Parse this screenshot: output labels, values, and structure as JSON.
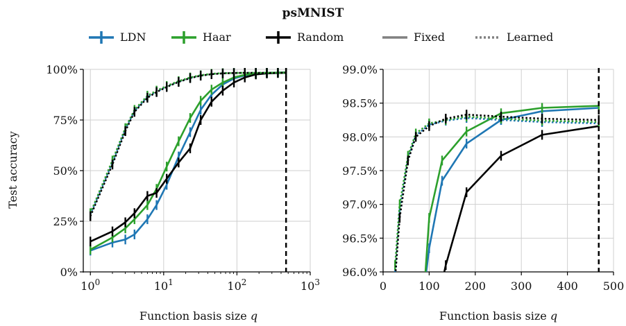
{
  "title": "psMNIST",
  "legend": [
    {
      "label": "LDN",
      "kind": "errorbar",
      "color": "#1f77b4"
    },
    {
      "label": "Haar",
      "kind": "errorbar",
      "color": "#2ca02c"
    },
    {
      "label": "Random",
      "kind": "errorbar",
      "color": "#000000"
    },
    {
      "label": "Fixed",
      "kind": "solid",
      "color": "#808080"
    },
    {
      "label": "Learned",
      "kind": "dotted",
      "color": "#808080"
    }
  ],
  "chart_data": [
    {
      "type": "line",
      "xscale": "log",
      "xlabel": "Function basis size q",
      "ylabel": "Test accuracy",
      "xlim": [
        0.8,
        1000
      ],
      "ylim": [
        0,
        100
      ],
      "xticks": [
        1,
        10,
        100,
        1000
      ],
      "xtick_labels": [
        "10^0",
        "10^1",
        "10^2",
        "10^3"
      ],
      "yticks": [
        0,
        25,
        50,
        75,
        100
      ],
      "ytick_labels": [
        "0%",
        "25%",
        "50%",
        "75%",
        "100%"
      ],
      "grid": true,
      "vline": 468,
      "series": [
        {
          "name": "LDN",
          "style": "Fixed",
          "color": "#1f77b4",
          "x": [
            1,
            2,
            3,
            4,
            6,
            8,
            11,
            16,
            23,
            32,
            45,
            64,
            91,
            128,
            181,
            256,
            362,
            468
          ],
          "y": [
            10.5,
            14.5,
            16.0,
            18.5,
            26.0,
            33.0,
            43.0,
            57.0,
            69.0,
            80.0,
            87.5,
            92.5,
            95.5,
            97.0,
            97.8,
            98.2,
            98.4,
            98.5
          ]
        },
        {
          "name": "Haar",
          "style": "Fixed",
          "color": "#2ca02c",
          "x": [
            1,
            2,
            3,
            4,
            6,
            8,
            11,
            16,
            23,
            32,
            45,
            64,
            91,
            128,
            181,
            256,
            362,
            468
          ],
          "y": [
            11.0,
            17.0,
            21.5,
            26.0,
            33.0,
            41.0,
            52.0,
            64.5,
            76.0,
            84.5,
            90.0,
            93.5,
            96.0,
            97.3,
            98.0,
            98.3,
            98.4,
            98.5
          ]
        },
        {
          "name": "Random",
          "style": "Fixed",
          "color": "#000000",
          "x": [
            1,
            2,
            3,
            4,
            6,
            8,
            11,
            16,
            23,
            32,
            45,
            64,
            91,
            128,
            181,
            256,
            362,
            468
          ],
          "y": [
            15.0,
            20.0,
            24.5,
            29.0,
            37.5,
            39.0,
            46.0,
            54.0,
            61.0,
            75.0,
            84.0,
            89.5,
            93.5,
            96.0,
            97.5,
            98.0,
            98.2,
            98.3
          ]
        },
        {
          "name": "LDN",
          "style": "Learned",
          "color": "#1f77b4",
          "x": [
            1,
            2,
            3,
            4,
            6,
            8,
            11,
            16,
            23,
            32,
            45,
            64,
            91,
            128,
            181,
            256,
            362,
            468
          ],
          "y": [
            28.5,
            54.0,
            70.5,
            79.5,
            86.5,
            89.0,
            91.5,
            94.0,
            95.8,
            97.0,
            97.7,
            98.1,
            98.2,
            98.3,
            98.3,
            98.3,
            98.3,
            98.3
          ]
        },
        {
          "name": "Haar",
          "style": "Learned",
          "color": "#2ca02c",
          "x": [
            1,
            2,
            3,
            4,
            6,
            8,
            11,
            16,
            23,
            32,
            45,
            64,
            91,
            128,
            181,
            256,
            362,
            468
          ],
          "y": [
            29.0,
            55.0,
            71.0,
            80.0,
            87.0,
            89.5,
            91.8,
            94.2,
            96.0,
            97.1,
            97.8,
            98.1,
            98.2,
            98.3,
            98.3,
            98.3,
            98.3,
            98.3
          ]
        },
        {
          "name": "Random",
          "style": "Learned",
          "color": "#000000",
          "x": [
            1,
            2,
            3,
            4,
            6,
            8,
            11,
            16,
            23,
            32,
            45,
            64,
            91,
            128,
            181,
            256,
            362,
            468
          ],
          "y": [
            27.5,
            53.0,
            69.5,
            79.0,
            86.0,
            88.8,
            91.3,
            93.8,
            95.7,
            96.9,
            97.6,
            98.0,
            98.2,
            98.3,
            98.3,
            98.3,
            98.3,
            98.3
          ]
        }
      ]
    },
    {
      "type": "line",
      "xscale": "linear",
      "xlabel": "Function basis size q",
      "ylabel": "",
      "xlim": [
        0,
        500
      ],
      "ylim": [
        96.0,
        99.0
      ],
      "xticks": [
        0,
        100,
        200,
        300,
        400,
        500
      ],
      "xtick_labels": [
        "0",
        "100",
        "200",
        "300",
        "400",
        "500"
      ],
      "yticks": [
        96.0,
        96.5,
        97.0,
        97.5,
        98.0,
        98.5,
        99.0
      ],
      "ytick_labels": [
        "96.0%",
        "96.5%",
        "97.0%",
        "97.5%",
        "98.0%",
        "98.5%",
        "99.0%"
      ],
      "grid": true,
      "vline": 468,
      "series": [
        {
          "name": "LDN",
          "style": "Fixed",
          "color": "#1f77b4",
          "x": [
            91,
            100,
            128,
            181,
            256,
            345,
            468
          ],
          "y": [
            95.85,
            96.35,
            97.35,
            97.9,
            98.25,
            98.38,
            98.43
          ]
        },
        {
          "name": "Haar",
          "style": "Fixed",
          "color": "#2ca02c",
          "x": [
            91,
            100,
            128,
            181,
            256,
            345,
            468
          ],
          "y": [
            95.9,
            96.8,
            97.65,
            98.08,
            98.35,
            98.43,
            98.46
          ]
        },
        {
          "name": "Random",
          "style": "Fixed",
          "color": "#000000",
          "x": [
            128,
            136,
            181,
            256,
            345,
            468
          ],
          "y": [
            95.85,
            96.1,
            97.18,
            97.72,
            98.03,
            98.16
          ]
        },
        {
          "name": "LDN",
          "style": "Learned",
          "color": "#1f77b4",
          "x": [
            26,
            36,
            54,
            71,
            100,
            136,
            181,
            256,
            345,
            468
          ],
          "y": [
            95.95,
            96.9,
            97.68,
            98.02,
            98.18,
            98.24,
            98.28,
            98.25,
            98.22,
            98.2
          ]
        },
        {
          "name": "Haar",
          "style": "Learned",
          "color": "#2ca02c",
          "x": [
            26,
            36,
            54,
            71,
            100,
            136,
            181,
            256,
            345,
            468
          ],
          "y": [
            96.1,
            97.0,
            97.72,
            98.05,
            98.2,
            98.25,
            98.3,
            98.27,
            98.24,
            98.22
          ]
        },
        {
          "name": "Random",
          "style": "Learned",
          "color": "#000000",
          "x": [
            26,
            36,
            54,
            71,
            100,
            136,
            181,
            256,
            345,
            468
          ],
          "y": [
            95.9,
            96.8,
            97.65,
            98.0,
            98.16,
            98.27,
            98.33,
            98.3,
            98.27,
            98.25
          ]
        }
      ]
    }
  ]
}
